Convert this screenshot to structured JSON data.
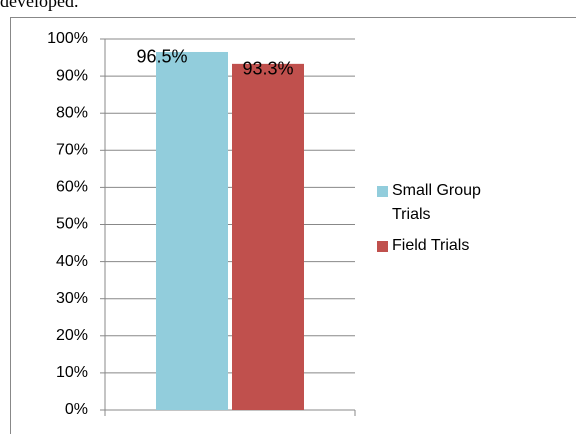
{
  "page_text": "developed.",
  "chart_data": {
    "type": "bar",
    "categories": [
      null
    ],
    "series": [
      {
        "name": "Small Group Trials",
        "color": "#92cddc",
        "values": [
          96.5
        ],
        "value_labels": [
          "96.5%"
        ]
      },
      {
        "name": "Field Trials",
        "color": "#c0504d",
        "values": [
          93.3
        ],
        "value_labels": [
          "93.3%"
        ]
      }
    ],
    "ylim": [
      0,
      100
    ],
    "yticks": [
      {
        "value": 0,
        "label": "0%"
      },
      {
        "value": 10,
        "label": "10%"
      },
      {
        "value": 20,
        "label": "20%"
      },
      {
        "value": 30,
        "label": "30%"
      },
      {
        "value": 40,
        "label": "40%"
      },
      {
        "value": 50,
        "label": "50%"
      },
      {
        "value": 60,
        "label": "60%"
      },
      {
        "value": 70,
        "label": "70%"
      },
      {
        "value": 80,
        "label": "80%"
      },
      {
        "value": 90,
        "label": "90%"
      },
      {
        "value": 100,
        "label": "100%"
      }
    ],
    "grid": true,
    "legend": "right"
  }
}
